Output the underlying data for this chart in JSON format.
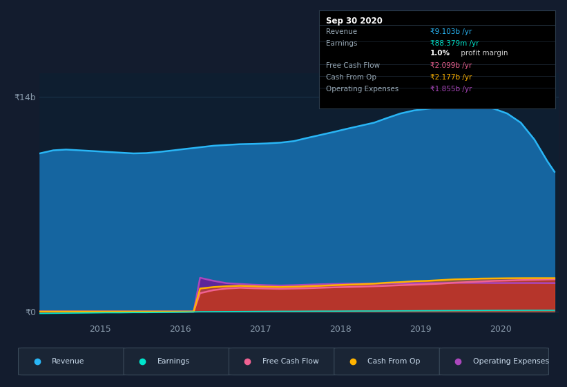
{
  "background_color": "#131c2e",
  "plot_bg_color": "#0e1e30",
  "x_years": [
    2014.25,
    2014.42,
    2014.58,
    2014.75,
    2014.92,
    2015.08,
    2015.25,
    2015.42,
    2015.58,
    2015.75,
    2015.92,
    2016.08,
    2016.17,
    2016.25,
    2016.42,
    2016.58,
    2016.75,
    2016.92,
    2017.08,
    2017.25,
    2017.42,
    2017.58,
    2017.75,
    2017.92,
    2018.08,
    2018.25,
    2018.42,
    2018.58,
    2018.75,
    2018.92,
    2019.08,
    2019.25,
    2019.42,
    2019.58,
    2019.75,
    2019.92,
    2020.08,
    2020.25,
    2020.42,
    2020.58,
    2020.67
  ],
  "revenue": [
    10.3,
    10.5,
    10.55,
    10.5,
    10.45,
    10.4,
    10.35,
    10.3,
    10.32,
    10.4,
    10.5,
    10.6,
    10.65,
    10.7,
    10.8,
    10.85,
    10.9,
    10.92,
    10.95,
    11.0,
    11.1,
    11.3,
    11.5,
    11.7,
    11.9,
    12.1,
    12.3,
    12.6,
    12.9,
    13.1,
    13.2,
    13.3,
    13.45,
    13.5,
    13.4,
    13.2,
    12.9,
    12.3,
    11.2,
    9.8,
    9.1
  ],
  "earnings": [
    -0.12,
    -0.11,
    -0.1,
    -0.09,
    -0.08,
    -0.07,
    -0.07,
    -0.06,
    -0.06,
    -0.05,
    -0.04,
    -0.03,
    -0.02,
    -0.01,
    -0.005,
    0.0,
    0.005,
    0.01,
    0.015,
    0.02,
    0.02,
    0.025,
    0.03,
    0.03,
    0.035,
    0.04,
    0.04,
    0.045,
    0.05,
    0.055,
    0.06,
    0.065,
    0.07,
    0.072,
    0.075,
    0.08,
    0.082,
    0.085,
    0.087,
    0.088,
    0.088
  ],
  "free_cash_flow": [
    0.0,
    0.0,
    0.0,
    0.0,
    0.0,
    0.0,
    0.0,
    0.0,
    0.0,
    0.0,
    0.0,
    0.0,
    0.0,
    1.2,
    1.4,
    1.5,
    1.55,
    1.52,
    1.5,
    1.48,
    1.5,
    1.52,
    1.55,
    1.58,
    1.6,
    1.62,
    1.65,
    1.68,
    1.72,
    1.75,
    1.78,
    1.82,
    1.88,
    1.92,
    1.96,
    2.0,
    2.02,
    2.05,
    2.07,
    2.09,
    2.099
  ],
  "cash_from_op": [
    0.0,
    0.0,
    0.0,
    0.0,
    0.0,
    0.0,
    0.0,
    0.0,
    0.0,
    0.0,
    0.0,
    0.0,
    0.0,
    1.5,
    1.6,
    1.65,
    1.68,
    1.65,
    1.62,
    1.6,
    1.62,
    1.65,
    1.68,
    1.72,
    1.75,
    1.78,
    1.82,
    1.88,
    1.92,
    1.98,
    2.0,
    2.05,
    2.1,
    2.12,
    2.15,
    2.16,
    2.17,
    2.175,
    2.177,
    2.177,
    2.177
  ],
  "operating_expenses": [
    0.0,
    0.0,
    0.0,
    0.0,
    0.0,
    0.0,
    0.0,
    0.0,
    0.0,
    0.0,
    0.0,
    0.0,
    0.0,
    2.2,
    2.0,
    1.85,
    1.8,
    1.75,
    1.72,
    1.7,
    1.72,
    1.75,
    1.78,
    1.8,
    1.82,
    1.82,
    1.83,
    1.84,
    1.85,
    1.85,
    1.85,
    1.86,
    1.87,
    1.87,
    1.87,
    1.86,
    1.86,
    1.86,
    1.86,
    1.855,
    1.855
  ],
  "revenue_color": "#29b6f6",
  "earnings_color": "#00e5cc",
  "free_cash_flow_color": "#f06292",
  "cash_from_op_color": "#ffb300",
  "operating_expenses_color": "#ab47bc",
  "revenue_fill": "#1565a0",
  "operating_expenses_fill": "#6a1b9a",
  "free_cash_flow_fill": "#880e4f",
  "cash_from_op_fill": "#e65100",
  "ylim": [
    -0.5,
    15.5
  ],
  "xlim": [
    2014.25,
    2020.72
  ],
  "xtick_positions": [
    2015,
    2016,
    2017,
    2018,
    2019,
    2020
  ],
  "xtick_labels": [
    "2015",
    "2016",
    "2017",
    "2018",
    "2019",
    "2020"
  ],
  "y14b_label": "₹14b",
  "y0_label": "₹0",
  "info_box": {
    "title": "Sep 30 2020",
    "rows": [
      {
        "label": "Revenue",
        "value": "₹9.103b /yr",
        "value_color": "#29b6f6"
      },
      {
        "label": "Earnings",
        "value": "₹88.379m /yr",
        "value_color": "#00e5cc"
      },
      {
        "label": "",
        "value2a": "1.0%",
        "value2b": " profit margin"
      },
      {
        "label": "Free Cash Flow",
        "value": "₹2.099b /yr",
        "value_color": "#f06292"
      },
      {
        "label": "Cash From Op",
        "value": "₹2.177b /yr",
        "value_color": "#ffb300"
      },
      {
        "label": "Operating Expenses",
        "value": "₹1.855b /yr",
        "value_color": "#ab47bc"
      }
    ]
  },
  "legend": [
    {
      "label": "Revenue",
      "color": "#29b6f6"
    },
    {
      "label": "Earnings",
      "color": "#00e5cc"
    },
    {
      "label": "Free Cash Flow",
      "color": "#f06292"
    },
    {
      "label": "Cash From Op",
      "color": "#ffb300"
    },
    {
      "label": "Operating Expenses",
      "color": "#ab47bc"
    }
  ]
}
